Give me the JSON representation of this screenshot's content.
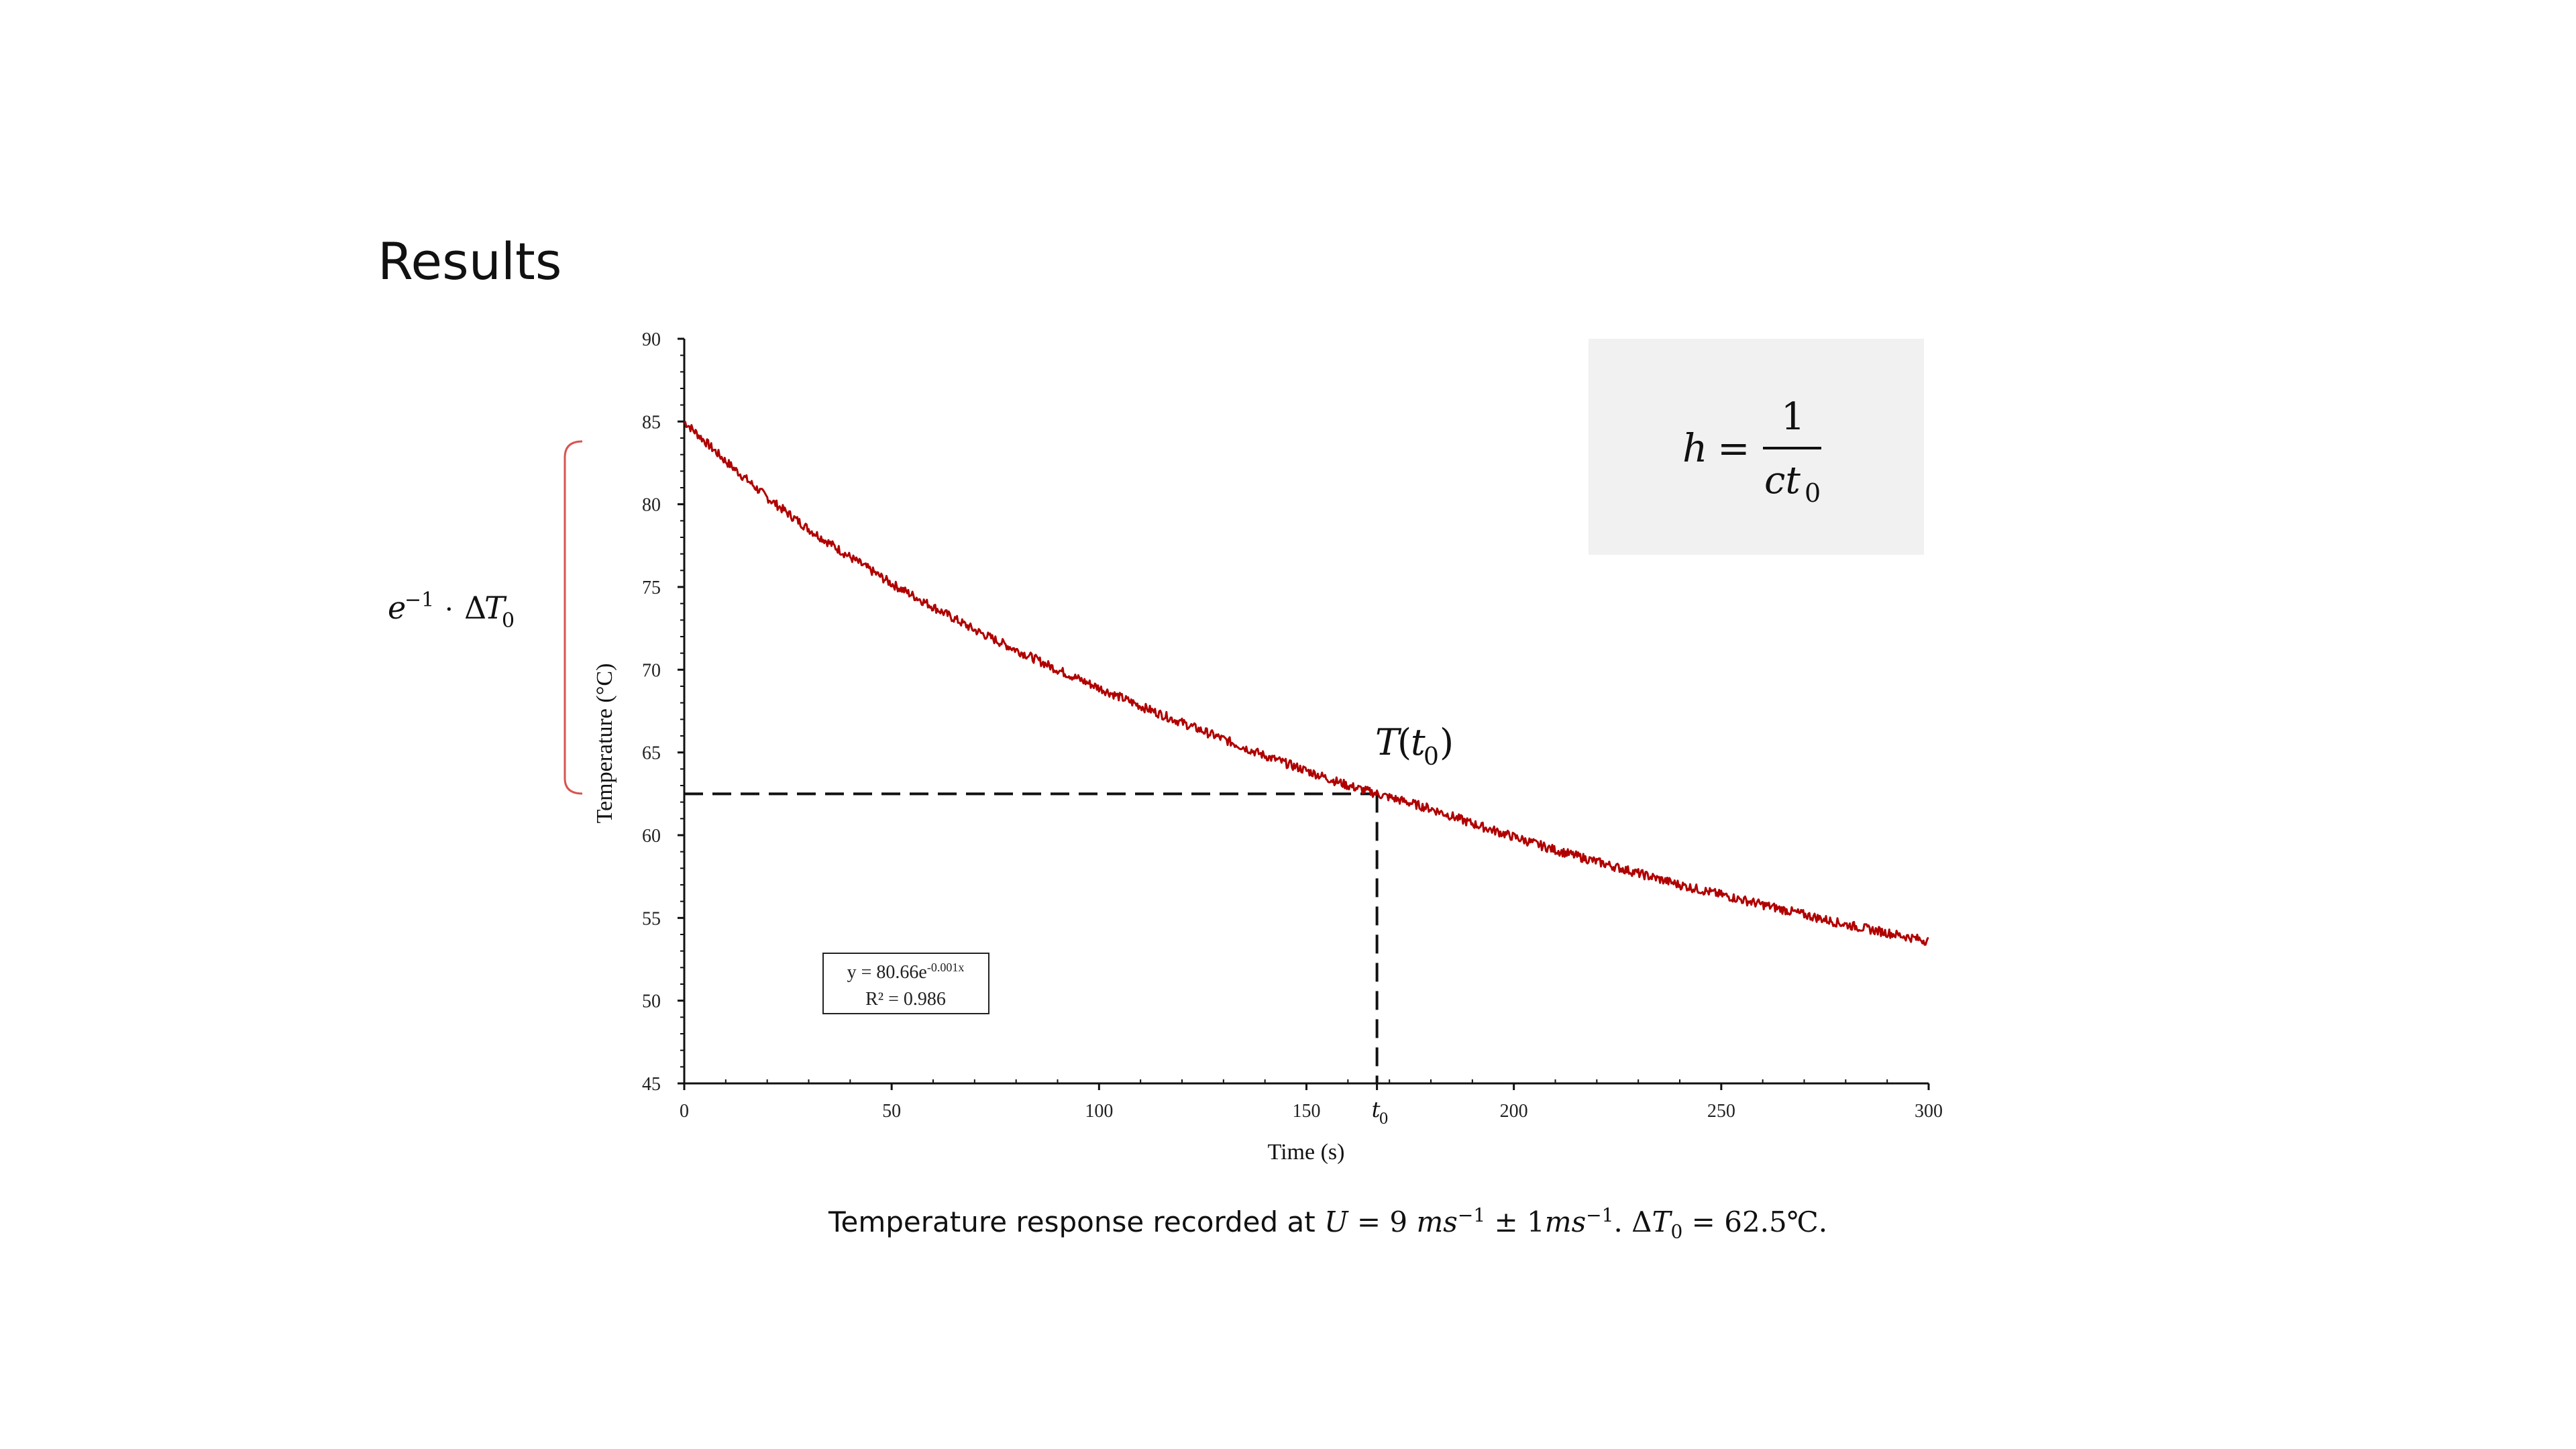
{
  "slide": {
    "title": "Results"
  },
  "annotations": {
    "bracket_label": "e⁻¹ · ΔT₀",
    "point_label": "T(t₀)",
    "formula": "h = 1 / (c t₀)"
  },
  "caption": {
    "prefix": "Temperature response recorded at ",
    "math": "U = 9 ms⁻¹ ± 1ms⁻¹. ΔT₀ = 62.5℃."
  },
  "fit_box": {
    "line1": "y = 80.66e^(-0.001x)",
    "line2": "R² = 0.986"
  },
  "colors": {
    "series": "#b00000",
    "bracket": "#d9534f",
    "formula_bg": "#f1f1f1"
  },
  "chart_data": {
    "type": "line",
    "xlabel": "Time (s)",
    "ylabel": "Temperature (°C)",
    "xlim": [
      0,
      300
    ],
    "ylim": [
      45,
      90
    ],
    "xticks": [
      "0",
      "50",
      "100",
      "150",
      "t0",
      "200",
      "250",
      "300"
    ],
    "yticks": [
      45,
      50,
      55,
      60,
      65,
      70,
      75,
      80,
      85,
      90
    ],
    "grid": false,
    "legend": "none",
    "series": [
      {
        "x": [
          0,
          10,
          20,
          30,
          40,
          50,
          60,
          70,
          80,
          90,
          100,
          110,
          120,
          130,
          140,
          150,
          160,
          167,
          180,
          190,
          200,
          210,
          220,
          230,
          240,
          250,
          260,
          270,
          280,
          290,
          300
        ],
        "values": [
          85.0,
          82.6,
          80.4,
          78.5,
          76.8,
          75.2,
          73.8,
          72.4,
          71.2,
          70.0,
          68.9,
          67.8,
          66.8,
          65.8,
          64.8,
          63.9,
          63.0,
          62.5,
          61.6,
          60.7,
          59.9,
          59.1,
          58.4,
          57.7,
          57.0,
          56.4,
          55.8,
          55.2,
          54.6,
          54.1,
          53.6
        ]
      }
    ],
    "reference_point": {
      "x": 167,
      "y": 62.5,
      "label": "t0"
    }
  }
}
